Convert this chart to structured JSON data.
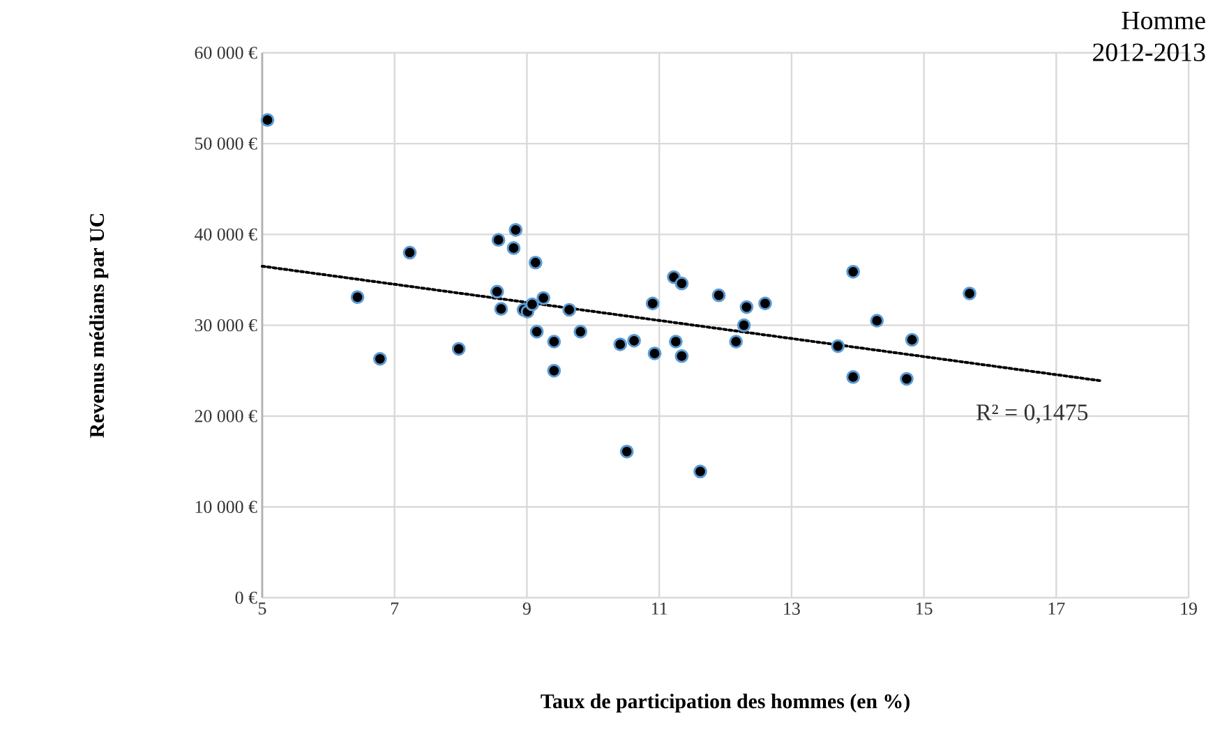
{
  "chart_data": {
    "type": "scatter",
    "title": "Homme",
    "subtitle": "2012-2013",
    "xlabel": "Taux de participation des hommes (en %)",
    "ylabel": "Revenus médians par UC",
    "xlim": [
      5,
      19
    ],
    "xticks": [
      5,
      7,
      9,
      11,
      13,
      15,
      17,
      19
    ],
    "ylim": [
      0,
      60000
    ],
    "yticks": [
      {
        "value": 0,
        "label": "0 €"
      },
      {
        "value": 10000,
        "label": "10 000 €"
      },
      {
        "value": 20000,
        "label": "20 000 €"
      },
      {
        "value": 30000,
        "label": "30 000 €"
      },
      {
        "value": 40000,
        "label": "40 000 €"
      },
      {
        "value": 50000,
        "label": "50 000 €"
      },
      {
        "value": 60000,
        "label": "60 000 €"
      }
    ],
    "grid": true,
    "marker": "circle",
    "series": [
      {
        "color": "#000000",
        "x": [
          5.08,
          6.44,
          6.78,
          7.23,
          7.97,
          8.55,
          8.57,
          8.61,
          8.8,
          8.83,
          8.95,
          9.01,
          9.08,
          9.13,
          9.15,
          9.25,
          9.41,
          9.41,
          9.64,
          9.81,
          10.41,
          10.51,
          10.62,
          10.9,
          10.93,
          11.22,
          11.25,
          11.34,
          11.34,
          11.62,
          11.9,
          12.16,
          12.28,
          12.32,
          12.6,
          13.7,
          13.93,
          13.93,
          14.29,
          14.74,
          14.82,
          15.69
        ],
        "values": [
          52600,
          33100,
          26300,
          38000,
          27400,
          33700,
          39400,
          31800,
          38500,
          40500,
          31700,
          31500,
          32300,
          36900,
          29300,
          33000,
          28200,
          25000,
          31700,
          29300,
          27900,
          16100,
          28300,
          32400,
          26900,
          35300,
          28200,
          34600,
          26600,
          13900,
          33300,
          28200,
          30000,
          32000,
          32400,
          27700,
          35900,
          24300,
          30500,
          24100,
          28400,
          33500
        ]
      },
      {
        "type": "line",
        "color": "#000000",
        "line_style": "dotted",
        "marker": "none",
        "x": [
          5,
          17.66
        ],
        "values": [
          36500,
          23900
        ]
      }
    ],
    "annotations": [
      "R² = 0,1475"
    ]
  }
}
